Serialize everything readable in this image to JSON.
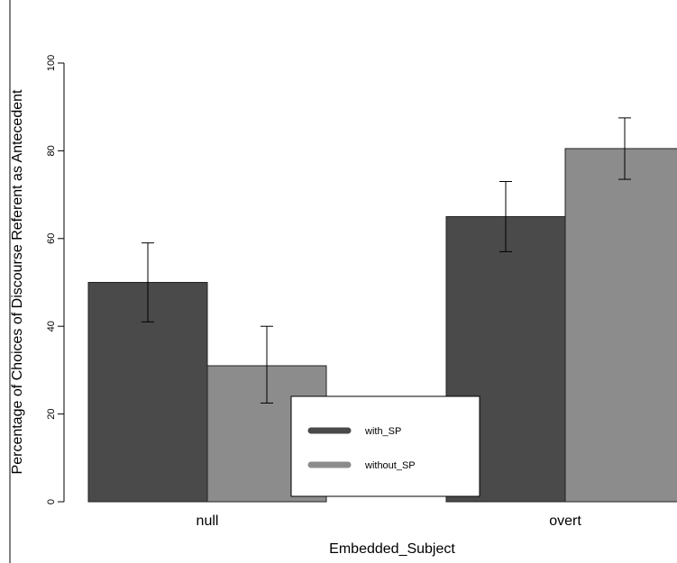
{
  "chart_data": {
    "type": "bar",
    "categories": [
      "null",
      "overt"
    ],
    "series": [
      {
        "name": "with_SP",
        "color": "#4a4a4a",
        "values": [
          50,
          65
        ],
        "err_low": [
          41,
          57
        ],
        "err_high": [
          59,
          73
        ]
      },
      {
        "name": "without_SP",
        "color": "#8c8c8c",
        "values": [
          31,
          80.5
        ],
        "err_low": [
          22.5,
          73.5
        ],
        "err_high": [
          40,
          87.5
        ]
      }
    ],
    "yticks": [
      0,
      20,
      40,
      60,
      80,
      100
    ],
    "ylim": [
      0,
      100
    ],
    "xlabel": "Embedded_Subject",
    "ylabel": "Percentage of Choices of Discourse Referent as Antecedent",
    "legend_position": "bottom-center",
    "grid": false
  }
}
